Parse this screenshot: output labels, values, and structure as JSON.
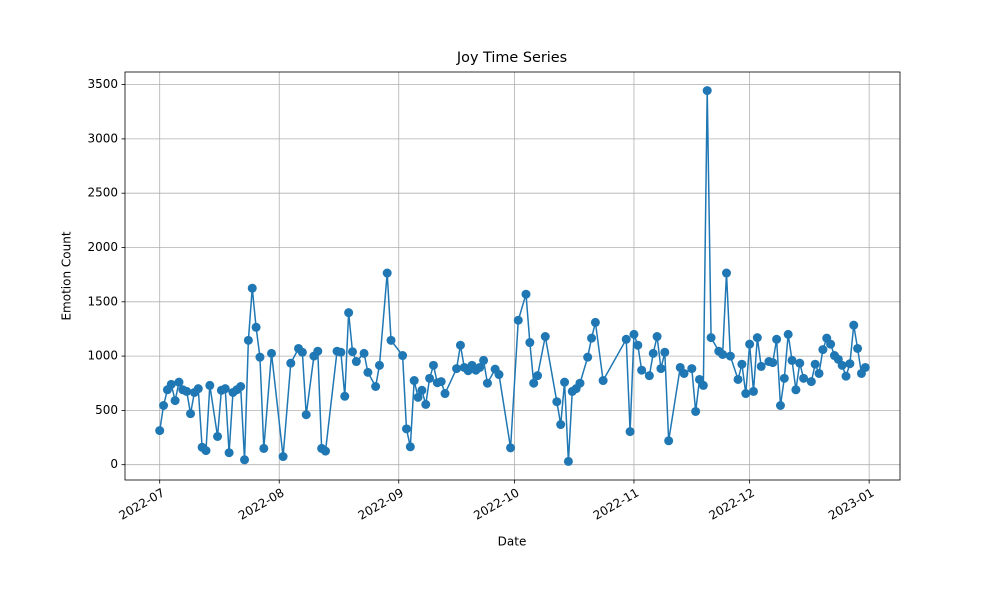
{
  "chart_data": {
    "type": "line",
    "title": "Joy Time Series",
    "x_label": "Date",
    "y_label": "Emotion Count",
    "x": [
      "2022-07-01",
      "2022-07-02",
      "2022-07-03",
      "2022-07-04",
      "2022-07-05",
      "2022-07-06",
      "2022-07-07",
      "2022-07-08",
      "2022-07-09",
      "2022-07-10",
      "2022-07-11",
      "2022-07-12",
      "2022-07-13",
      "2022-07-14",
      "2022-07-16",
      "2022-07-17",
      "2022-07-18",
      "2022-07-19",
      "2022-07-20",
      "2022-07-21",
      "2022-07-22",
      "2022-07-23",
      "2022-07-24",
      "2022-07-25",
      "2022-07-26",
      "2022-07-27",
      "2022-07-28",
      "2022-07-30",
      "2022-08-02",
      "2022-08-04",
      "2022-08-06",
      "2022-08-07",
      "2022-08-08",
      "2022-08-10",
      "2022-08-11",
      "2022-08-12",
      "2022-08-13",
      "2022-08-16",
      "2022-08-17",
      "2022-08-18",
      "2022-08-19",
      "2022-08-20",
      "2022-08-21",
      "2022-08-23",
      "2022-08-24",
      "2022-08-26",
      "2022-08-27",
      "2022-08-29",
      "2022-08-30",
      "2022-09-02",
      "2022-09-03",
      "2022-09-04",
      "2022-09-05",
      "2022-09-06",
      "2022-09-07",
      "2022-09-08",
      "2022-09-09",
      "2022-09-10",
      "2022-09-11",
      "2022-09-12",
      "2022-09-13",
      "2022-09-16",
      "2022-09-17",
      "2022-09-18",
      "2022-09-19",
      "2022-09-20",
      "2022-09-21",
      "2022-09-22",
      "2022-09-23",
      "2022-09-24",
      "2022-09-26",
      "2022-09-27",
      "2022-09-30",
      "2022-10-02",
      "2022-10-04",
      "2022-10-05",
      "2022-10-06",
      "2022-10-07",
      "2022-10-09",
      "2022-10-12",
      "2022-10-13",
      "2022-10-14",
      "2022-10-15",
      "2022-10-16",
      "2022-10-17",
      "2022-10-18",
      "2022-10-20",
      "2022-10-21",
      "2022-10-22",
      "2022-10-24",
      "2022-10-30",
      "2022-10-31",
      "2022-11-01",
      "2022-11-02",
      "2022-11-03",
      "2022-11-05",
      "2022-11-06",
      "2022-11-07",
      "2022-11-08",
      "2022-11-09",
      "2022-11-10",
      "2022-11-13",
      "2022-11-14",
      "2022-11-16",
      "2022-11-17",
      "2022-11-18",
      "2022-11-19",
      "2022-11-20",
      "2022-11-21",
      "2022-11-23",
      "2022-11-24",
      "2022-11-25",
      "2022-11-26",
      "2022-11-28",
      "2022-11-29",
      "2022-11-30",
      "2022-12-01",
      "2022-12-02",
      "2022-12-03",
      "2022-12-04",
      "2022-12-06",
      "2022-12-07",
      "2022-12-08",
      "2022-12-09",
      "2022-12-10",
      "2022-12-11",
      "2022-12-12",
      "2022-12-13",
      "2022-12-14",
      "2022-12-15",
      "2022-12-17",
      "2022-12-18",
      "2022-12-19",
      "2022-12-20",
      "2022-12-21",
      "2022-12-22",
      "2022-12-23",
      "2022-12-24",
      "2022-12-25",
      "2022-12-26",
      "2022-12-27",
      "2022-12-28",
      "2022-12-29",
      "2022-12-30",
      "2022-12-31"
    ],
    "series": [
      {
        "color": "#1f77b4",
        "values": [
          314,
          545,
          690,
          740,
          590,
          760,
          690,
          675,
          470,
          665,
          700,
          160,
          130,
          730,
          260,
          685,
          700,
          110,
          665,
          690,
          720,
          45,
          1145,
          1625,
          1265,
          990,
          150,
          1025,
          75,
          935,
          1070,
          1035,
          460,
          1000,
          1045,
          150,
          125,
          1045,
          1035,
          630,
          1400,
          1040,
          950,
          1025,
          850,
          720,
          915,
          1765,
          1145,
          1005,
          330,
          165,
          775,
          620,
          685,
          555,
          795,
          915,
          755,
          765,
          655,
          885,
          1100,
          895,
          865,
          915,
          870,
          895,
          960,
          750,
          880,
          830,
          155,
          1330,
          1570,
          1125,
          750,
          820,
          1180,
          580,
          370,
          760,
          30,
          675,
          700,
          750,
          990,
          1165,
          1310,
          775,
          1155,
          305,
          1200,
          1100,
          870,
          820,
          1025,
          1180,
          885,
          1035,
          220,
          895,
          840,
          885,
          490,
          785,
          730,
          3445,
          1170,
          1045,
          1015,
          1765,
          1000,
          785,
          925,
          655,
          1110,
          675,
          1170,
          905,
          950,
          940,
          1155,
          545,
          795,
          1200,
          960,
          690,
          935,
          795,
          765,
          925,
          840,
          1060,
          1165,
          1110,
          1005,
          970,
          915,
          815,
          930,
          1285,
          1070,
          840,
          895
        ]
      }
    ],
    "xlim": [
      "2022-06-22",
      "2023-01-09"
    ],
    "xticks": [
      {
        "value": "2022-07-01",
        "label": "2022-07"
      },
      {
        "value": "2022-08-01",
        "label": "2022-08"
      },
      {
        "value": "2022-09-01",
        "label": "2022-09"
      },
      {
        "value": "2022-10-01",
        "label": "2022-10"
      },
      {
        "value": "2022-11-01",
        "label": "2022-11"
      },
      {
        "value": "2022-12-01",
        "label": "2022-12"
      },
      {
        "value": "2023-01-01",
        "label": "2023-01"
      }
    ],
    "ylim": [
      -141,
      3616
    ],
    "yticks": [
      0,
      500,
      1000,
      1500,
      2000,
      2500,
      3000,
      3500
    ],
    "grid": true
  }
}
